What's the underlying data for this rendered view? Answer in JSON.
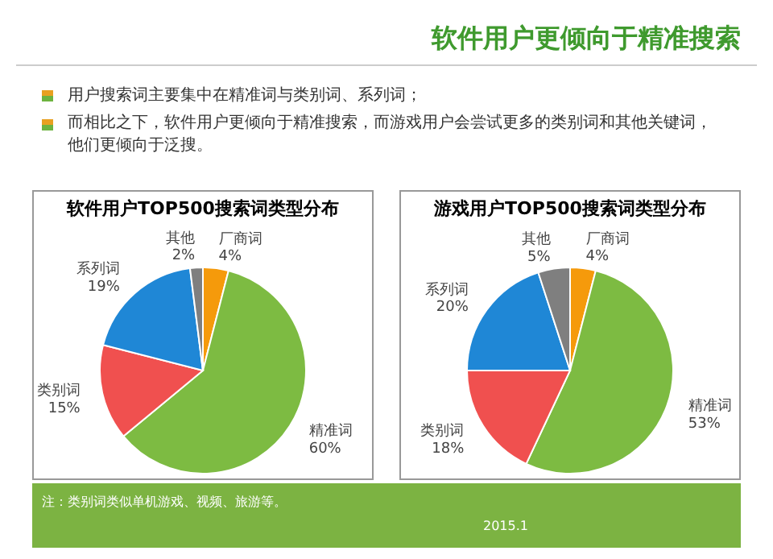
{
  "chart_data": [
    {
      "type": "other",
      "title": "软件用户更倾向于精准搜索",
      "annotations": [
        "用户搜索词主要集中在精准词与类别词、系列词；",
        "而相比之下，软件用户更倾向于精准搜索，而游戏用户会尝试更多的类别词和其他关键词，他们更倾向于泛搜。",
        "注：类别词类似单机游戏、视频、旅游等。",
        "2015.1"
      ]
    },
    {
      "type": "pie",
      "title": "软件用户TOP500搜索词类型分布",
      "categories": [
        "厂商词",
        "精准词",
        "类别词",
        "系列词",
        "其他"
      ],
      "values": [
        4,
        60,
        15,
        19,
        2
      ],
      "value_labels": [
        "4%",
        "60%",
        "15%",
        "19%",
        "2%"
      ],
      "colors": [
        "#f59a0b",
        "#7dbb42",
        "#f0504f",
        "#1f87d6",
        "#7f7f7f"
      ]
    },
    {
      "type": "pie",
      "title": "游戏用户TOP500搜索词类型分布",
      "categories": [
        "厂商词",
        "精准词",
        "类别词",
        "系列词",
        "其他"
      ],
      "values": [
        4,
        53,
        18,
        20,
        5
      ],
      "value_labels": [
        "4%",
        "53%",
        "18%",
        "20%",
        "5%"
      ],
      "colors": [
        "#f59a0b",
        "#7dbb42",
        "#f0504f",
        "#1f87d6",
        "#7f7f7f"
      ]
    }
  ]
}
